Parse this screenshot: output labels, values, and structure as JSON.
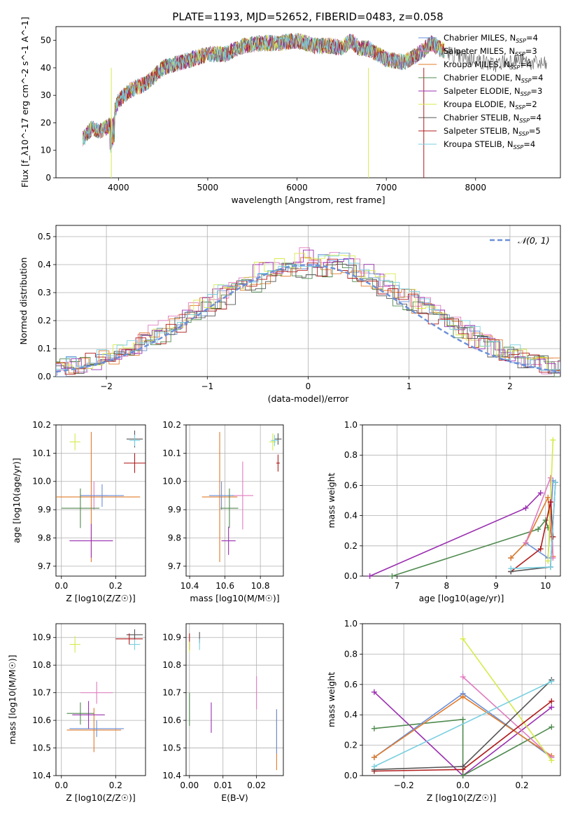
{
  "figure": {
    "title": "PLATE=1193, MJD=52652, FIBERID=0483, z=0.058"
  },
  "colors": [
    "#6a8fd8",
    "#e07bbf",
    "#e07b2a",
    "#4f8a4f",
    "#9a2fb0",
    "#d6ea4a",
    "#555555",
    "#b01c1c",
    "#79cfe0"
  ],
  "chart_data": [
    {
      "id": "spectrum",
      "type": "line",
      "xlabel": "wavelength [Angstrom, rest frame]",
      "ylabel": "Flux [f_λ10^-17 erg cm^-2 s^-1 A^-1]",
      "xlim": [
        3300,
        8950
      ],
      "ylim": [
        0,
        55
      ],
      "xticks": [
        4000,
        5000,
        6000,
        7000,
        8000
      ],
      "yticks": [
        0,
        10,
        20,
        30,
        40,
        50
      ],
      "grid": false,
      "legend_position": "top-right",
      "series": [
        {
          "name": "Chabrier MILES, N_SSP=4",
          "color": "#6a8fd8"
        },
        {
          "name": "Salpeter MILES, N_SSP=3",
          "color": "#e07bbf"
        },
        {
          "name": "Kroupa MILES, N_SSP=4",
          "color": "#e07b2a"
        },
        {
          "name": "Chabrier ELODIE, N_SSP=4",
          "color": "#4f8a4f"
        },
        {
          "name": "Salpeter ELODIE, N_SSP=3",
          "color": "#9a2fb0"
        },
        {
          "name": "Kroupa ELODIE, N_SSP=2",
          "color": "#d6ea4a"
        },
        {
          "name": "Chabrier STELIB, N_SSP=4",
          "color": "#555555"
        },
        {
          "name": "Salpeter STELIB, N_SSP=5",
          "color": "#b01c1c"
        },
        {
          "name": "Kroupa STELIB, N_SSP=4",
          "color": "#79cfe0"
        }
      ],
      "continuum": {
        "x": [
          3600,
          3700,
          3800,
          3900,
          4000,
          4100,
          4200,
          4300,
          4400,
          4500,
          4600,
          4800,
          5000,
          5200,
          5400,
          5600,
          5800,
          6000,
          6200,
          6400,
          6500,
          6600,
          6700,
          6800,
          7000,
          7200,
          7400,
          7500,
          7600,
          7800,
          8000,
          8200,
          8400,
          8600,
          8800
        ],
        "y": [
          14,
          18,
          17,
          19,
          28,
          31,
          33,
          34,
          37,
          40,
          41,
          43,
          45,
          45,
          48,
          49,
          49,
          50,
          48,
          48,
          47,
          50,
          47,
          47,
          43,
          42,
          46,
          49,
          47,
          44,
          43,
          41,
          43,
          42,
          41
        ]
      }
    },
    {
      "id": "residuals",
      "type": "line",
      "xlabel": "(data-model)/error",
      "ylabel": "Normed distribution",
      "xlim": [
        -2.5,
        2.5
      ],
      "ylim": [
        0,
        0.54
      ],
      "xticks": [
        -2,
        -1,
        0,
        1,
        2
      ],
      "yticks": [
        0.0,
        0.1,
        0.2,
        0.3,
        0.4,
        0.5
      ],
      "grid": true,
      "legend_position": "top-right",
      "legend": [
        "𝒩(0, 1)"
      ]
    },
    {
      "id": "age_vs_Z",
      "type": "scatter",
      "xlabel": "Z [log10(Z/Z☉)]",
      "ylabel": "age  [log10(age/yr)]",
      "xlim": [
        -0.02,
        0.31
      ],
      "ylim": [
        9.665,
        10.2
      ],
      "xticks": [
        0.0,
        0.2
      ],
      "yticks": [
        9.7,
        9.8,
        9.9,
        10.0,
        10.1,
        10.2
      ],
      "grid": true,
      "points": [
        {
          "x": 0.05,
          "y": 10.14,
          "xerr": 0.02,
          "yerr": 0.03,
          "c": 5
        },
        {
          "x": 0.27,
          "y": 10.15,
          "xerr": 0.03,
          "yerr": 0.03,
          "c": 6
        },
        {
          "x": 0.27,
          "y": 10.145,
          "xerr": 0.02,
          "yerr": 0.02,
          "c": 8
        },
        {
          "x": 0.27,
          "y": 10.065,
          "xerr": 0.04,
          "yerr": 0.035,
          "c": 7
        },
        {
          "x": 0.12,
          "y": 9.95,
          "xerr": 0.05,
          "yerr": 0.05,
          "c": 1
        },
        {
          "x": 0.11,
          "y": 9.945,
          "xerr": 0.18,
          "yerr": 0.23,
          "c": 2
        },
        {
          "x": 0.15,
          "y": 9.95,
          "xerr": 0.08,
          "yerr": 0.04,
          "c": 0
        },
        {
          "x": 0.07,
          "y": 9.905,
          "xerr": 0.07,
          "yerr": 0.07,
          "c": 3
        },
        {
          "x": 0.11,
          "y": 9.79,
          "xerr": 0.08,
          "yerr": 0.06,
          "c": 4
        }
      ]
    },
    {
      "id": "age_vs_mass",
      "type": "scatter",
      "xlabel": "mass [log10(M/M☉)]",
      "ylabel": "",
      "xlim": [
        10.38,
        10.93
      ],
      "ylim": [
        9.665,
        10.2
      ],
      "xticks": [
        10.4,
        10.6,
        10.8
      ],
      "yticks": [
        9.7,
        9.8,
        9.9,
        10.0,
        10.1,
        10.2
      ],
      "grid": true,
      "points": [
        {
          "x": 10.87,
          "y": 10.14,
          "xerr": 0.02,
          "yerr": 0.03,
          "c": 5
        },
        {
          "x": 10.9,
          "y": 10.15,
          "xerr": 0.02,
          "yerr": 0.02,
          "c": 6
        },
        {
          "x": 10.88,
          "y": 10.145,
          "xerr": 0.02,
          "yerr": 0.02,
          "c": 8
        },
        {
          "x": 10.9,
          "y": 10.065,
          "xerr": 0.01,
          "yerr": 0.03,
          "c": 7
        },
        {
          "x": 10.7,
          "y": 9.95,
          "xerr": 0.06,
          "yerr": 0.12,
          "c": 1
        },
        {
          "x": 10.57,
          "y": 9.945,
          "xerr": 0.1,
          "yerr": 0.23,
          "c": 2
        },
        {
          "x": 10.58,
          "y": 9.95,
          "xerr": 0.07,
          "yerr": 0.05,
          "c": 0
        },
        {
          "x": 10.625,
          "y": 9.905,
          "xerr": 0.05,
          "yerr": 0.07,
          "c": 3
        },
        {
          "x": 10.62,
          "y": 9.79,
          "xerr": 0.04,
          "yerr": 0.05,
          "c": 4
        }
      ]
    },
    {
      "id": "weight_vs_age",
      "type": "line",
      "xlabel": "age  [log10(age/yr)]",
      "ylabel": "mass weight",
      "xlim": [
        6.3,
        10.3
      ],
      "ylim": [
        0,
        1.0
      ],
      "xticks": [
        7,
        8,
        9,
        10
      ],
      "yticks": [
        0.0,
        0.2,
        0.4,
        0.6,
        0.8,
        1.0
      ],
      "grid": true,
      "series": [
        {
          "c": 4,
          "x": [
            6.45,
            9.6,
            9.9
          ],
          "y": [
            0.0,
            0.45,
            0.55
          ]
        },
        {
          "c": 3,
          "x": [
            6.9,
            9.85,
            10.0,
            10.05
          ],
          "y": [
            0.0,
            0.31,
            0.37,
            0.32
          ]
        },
        {
          "c": 0,
          "x": [
            9.3,
            9.6,
            10.05,
            10.15
          ],
          "y": [
            0.12,
            0.22,
            0.12,
            0.63
          ]
        },
        {
          "c": 2,
          "x": [
            9.3,
            9.6,
            10.05,
            10.15
          ],
          "y": [
            0.12,
            0.22,
            0.52,
            0.13
          ]
        },
        {
          "c": 1,
          "x": [
            9.6,
            10.1,
            10.15
          ],
          "y": [
            0.22,
            0.65,
            0.12
          ]
        },
        {
          "c": 5,
          "x": [
            10.05,
            10.15
          ],
          "y": [
            0.1,
            0.9
          ]
        },
        {
          "c": 7,
          "x": [
            9.3,
            9.9,
            10.1,
            10.15
          ],
          "y": [
            0.03,
            0.18,
            0.49,
            0.26
          ]
        },
        {
          "c": 6,
          "x": [
            9.3,
            10.1,
            10.2
          ],
          "y": [
            0.03,
            0.06,
            0.62
          ]
        },
        {
          "c": 8,
          "x": [
            9.3,
            10.1,
            10.2
          ],
          "y": [
            0.05,
            0.06,
            0.62
          ]
        }
      ]
    },
    {
      "id": "mass_vs_Z",
      "type": "scatter",
      "xlabel": "Z [log10(Z/Z☉)]",
      "ylabel": "mass [log10(M/M☉)]",
      "xlim": [
        -0.02,
        0.31
      ],
      "ylim": [
        10.4,
        10.95
      ],
      "xticks": [
        0.0,
        0.2
      ],
      "yticks": [
        10.4,
        10.5,
        10.6,
        10.7,
        10.8,
        10.9
      ],
      "grid": true,
      "points": [
        {
          "x": 0.05,
          "y": 10.875,
          "xerr": 0.02,
          "yerr": 0.03,
          "c": 5
        },
        {
          "x": 0.27,
          "y": 10.91,
          "xerr": 0.03,
          "yerr": 0.02,
          "c": 6
        },
        {
          "x": 0.27,
          "y": 10.875,
          "xerr": 0.02,
          "yerr": 0.02,
          "c": 8
        },
        {
          "x": 0.25,
          "y": 10.895,
          "xerr": 0.05,
          "yerr": 0.02,
          "c": 7
        },
        {
          "x": 0.13,
          "y": 10.7,
          "xerr": 0.06,
          "yerr": 0.04,
          "c": 1
        },
        {
          "x": 0.12,
          "y": 10.565,
          "xerr": 0.1,
          "yerr": 0.08,
          "c": 2
        },
        {
          "x": 0.13,
          "y": 10.57,
          "xerr": 0.1,
          "yerr": 0.03,
          "c": 0
        },
        {
          "x": 0.07,
          "y": 10.625,
          "xerr": 0.05,
          "yerr": 0.04,
          "c": 3
        },
        {
          "x": 0.1,
          "y": 10.62,
          "xerr": 0.06,
          "yerr": 0.05,
          "c": 4
        }
      ]
    },
    {
      "id": "mass_vs_ebv",
      "type": "scatter",
      "xlabel": "E(B-V)",
      "ylabel": "",
      "xlim": [
        -0.001,
        0.028
      ],
      "ylim": [
        10.4,
        10.95
      ],
      "xticks": [
        0.0,
        0.01,
        0.02
      ],
      "yticks": [
        10.4,
        10.5,
        10.6,
        10.7,
        10.8,
        10.9
      ],
      "grid": true,
      "points": [
        {
          "x": 0.0,
          "y": 10.885,
          "yerr": 0.03,
          "c": 7
        },
        {
          "x": 0.0,
          "y": 10.865,
          "yerr": 0.02,
          "c": 5
        },
        {
          "x": 0.003,
          "y": 10.9,
          "yerr": 0.02,
          "c": 6
        },
        {
          "x": 0.003,
          "y": 10.875,
          "yerr": 0.02,
          "c": 8
        },
        {
          "x": 0.02,
          "y": 10.7,
          "yerr": 0.06,
          "c": 1
        },
        {
          "x": 0.026,
          "y": 10.53,
          "yerr": 0.11,
          "c": 2
        },
        {
          "x": 0.026,
          "y": 10.56,
          "yerr": 0.08,
          "c": 0
        },
        {
          "x": 0.0,
          "y": 10.64,
          "yerr": 0.06,
          "c": 3
        },
        {
          "x": 0.0065,
          "y": 10.61,
          "yerr": 0.055,
          "c": 4
        }
      ]
    },
    {
      "id": "weight_vs_Z",
      "type": "line",
      "xlabel": "Z [log10(Z/Z☉)]",
      "ylabel": "mass weight",
      "xlim": [
        -0.34,
        0.33
      ],
      "ylim": [
        0,
        1.0
      ],
      "xticks": [
        -0.2,
        0.0,
        0.2
      ],
      "yticks": [
        0.0,
        0.2,
        0.4,
        0.6,
        0.8,
        1.0
      ],
      "grid": true,
      "series": [
        {
          "c": 4,
          "x": [
            -0.3,
            0.0,
            0.3
          ],
          "y": [
            0.55,
            0.0,
            0.45
          ]
        },
        {
          "c": 3,
          "x": [
            -0.3,
            0.0,
            0.0,
            0.3
          ],
          "y": [
            0.31,
            0.37,
            0.0,
            0.32
          ]
        },
        {
          "c": 0,
          "x": [
            -0.3,
            0.0,
            0.3
          ],
          "y": [
            0.12,
            0.54,
            0.12
          ]
        },
        {
          "c": 2,
          "x": [
            -0.3,
            0.0,
            0.3
          ],
          "y": [
            0.12,
            0.52,
            0.13
          ]
        },
        {
          "c": 1,
          "x": [
            0.0,
            0.3
          ],
          "y": [
            0.65,
            0.12
          ]
        },
        {
          "c": 5,
          "x": [
            0.0,
            0.3
          ],
          "y": [
            0.9,
            0.1
          ]
        },
        {
          "c": 7,
          "x": [
            -0.3,
            0.0,
            0.3
          ],
          "y": [
            0.03,
            0.04,
            0.49
          ]
        },
        {
          "c": 6,
          "x": [
            -0.3,
            0.0,
            0.3
          ],
          "y": [
            0.04,
            0.06,
            0.63
          ]
        },
        {
          "c": 8,
          "x": [
            -0.3,
            0.3
          ],
          "y": [
            0.06,
            0.62
          ]
        }
      ]
    }
  ]
}
